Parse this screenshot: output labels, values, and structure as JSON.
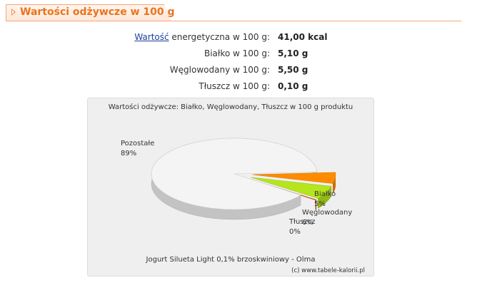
{
  "section": {
    "title": "Wartości odżywcze w 100 g"
  },
  "nutrition": {
    "energy": {
      "link": "Wartość",
      "rest": " energetyczna w 100 g:",
      "value": "41,00 kcal"
    },
    "rows": [
      {
        "label": "Białko w 100 g:",
        "value": "5,10 g"
      },
      {
        "label": "Węglowodany w 100 g:",
        "value": "5,50 g"
      },
      {
        "label": "Tłuszcz w 100 g:",
        "value": "0,10 g"
      }
    ]
  },
  "chart_data": {
    "type": "pie",
    "title": "Wartości odżywcze: Białko, Węglowodany, Tłuszcz w 100 g produktu",
    "subtitle": "Jogurt Silueta Light 0,1% brzoskwiniowy - Olma",
    "credit": "(c) www.tabele-kalorii.pl",
    "slices": [
      {
        "name": "Pozostałe",
        "label": "89%",
        "value": 89,
        "color": "#f4f4f4"
      },
      {
        "name": "Białko",
        "label": "5%",
        "value": 5,
        "color": "#ff8c00"
      },
      {
        "name": "Węglowodany",
        "label": "6%",
        "value": 6,
        "color": "#b5e61d"
      },
      {
        "name": "Tłuszcz",
        "label": "0%",
        "value": 0,
        "color": "#e0561a"
      }
    ]
  }
}
